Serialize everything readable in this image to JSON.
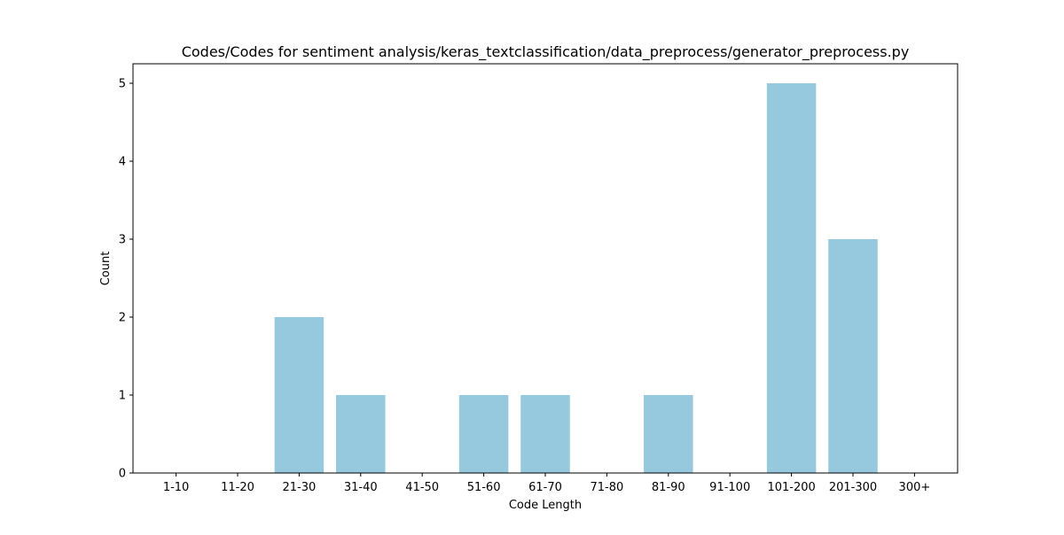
{
  "chart_data": {
    "type": "bar",
    "title": "Codes/Codes for sentiment analysis/keras_textclassification/data_preprocess/generator_preprocess.py",
    "xlabel": "Code Length",
    "ylabel": "Count",
    "categories": [
      "1-10",
      "11-20",
      "21-30",
      "31-40",
      "41-50",
      "51-60",
      "61-70",
      "71-80",
      "81-90",
      "91-100",
      "101-200",
      "201-300",
      "300+"
    ],
    "values": [
      0,
      0,
      2,
      1,
      0,
      1,
      1,
      0,
      1,
      0,
      5,
      3,
      0
    ],
    "ylim": [
      0,
      5.25
    ],
    "yticks": [
      0,
      1,
      2,
      3,
      4,
      5
    ],
    "grid": false,
    "bar_color": "#96c9dd"
  }
}
